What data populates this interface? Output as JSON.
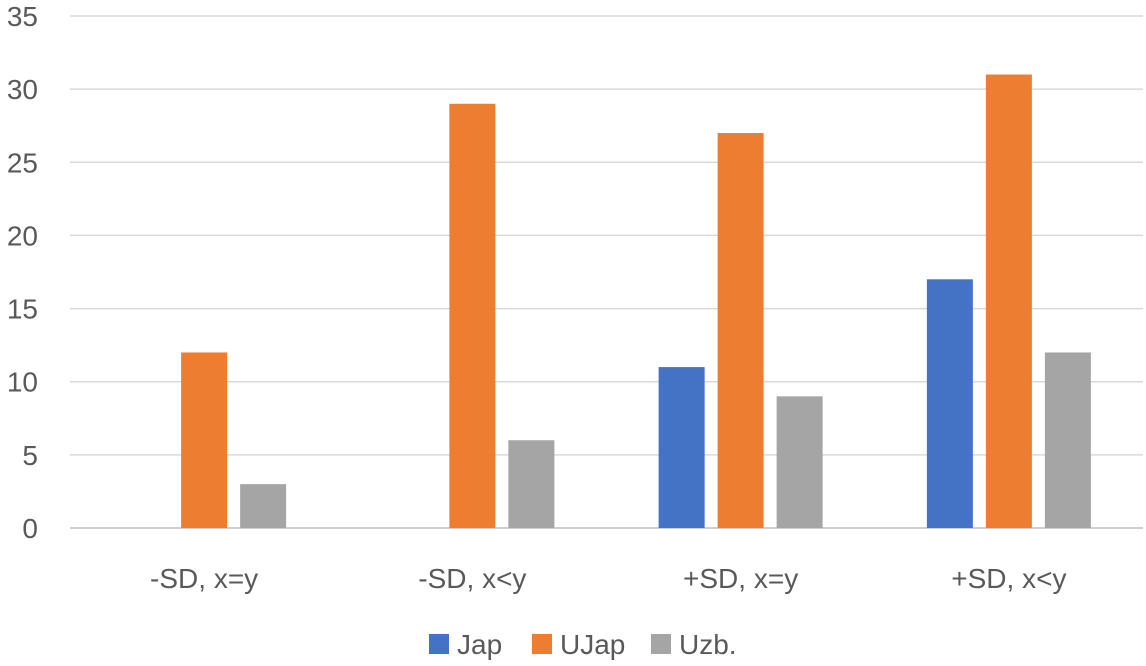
{
  "chart_data": {
    "type": "bar",
    "title": "",
    "xlabel": "",
    "ylabel": "",
    "categories": [
      "-SD, x=y",
      "-SD, x<y",
      "+SD, x=y",
      "+SD, x<y"
    ],
    "series": [
      {
        "name": "Jap",
        "color": "#4472C4",
        "values": [
          0,
          0,
          11,
          17
        ]
      },
      {
        "name": "UJap",
        "color": "#ED7D31",
        "values": [
          12,
          29,
          27,
          31
        ]
      },
      {
        "name": "Uzb.",
        "color": "#A5A5A5",
        "values": [
          3,
          6,
          9,
          12
        ]
      }
    ],
    "ylim": [
      0,
      35
    ],
    "yticks": [
      0,
      5,
      10,
      15,
      20,
      25,
      30,
      35
    ],
    "grid": true,
    "legend_position": "bottom"
  }
}
